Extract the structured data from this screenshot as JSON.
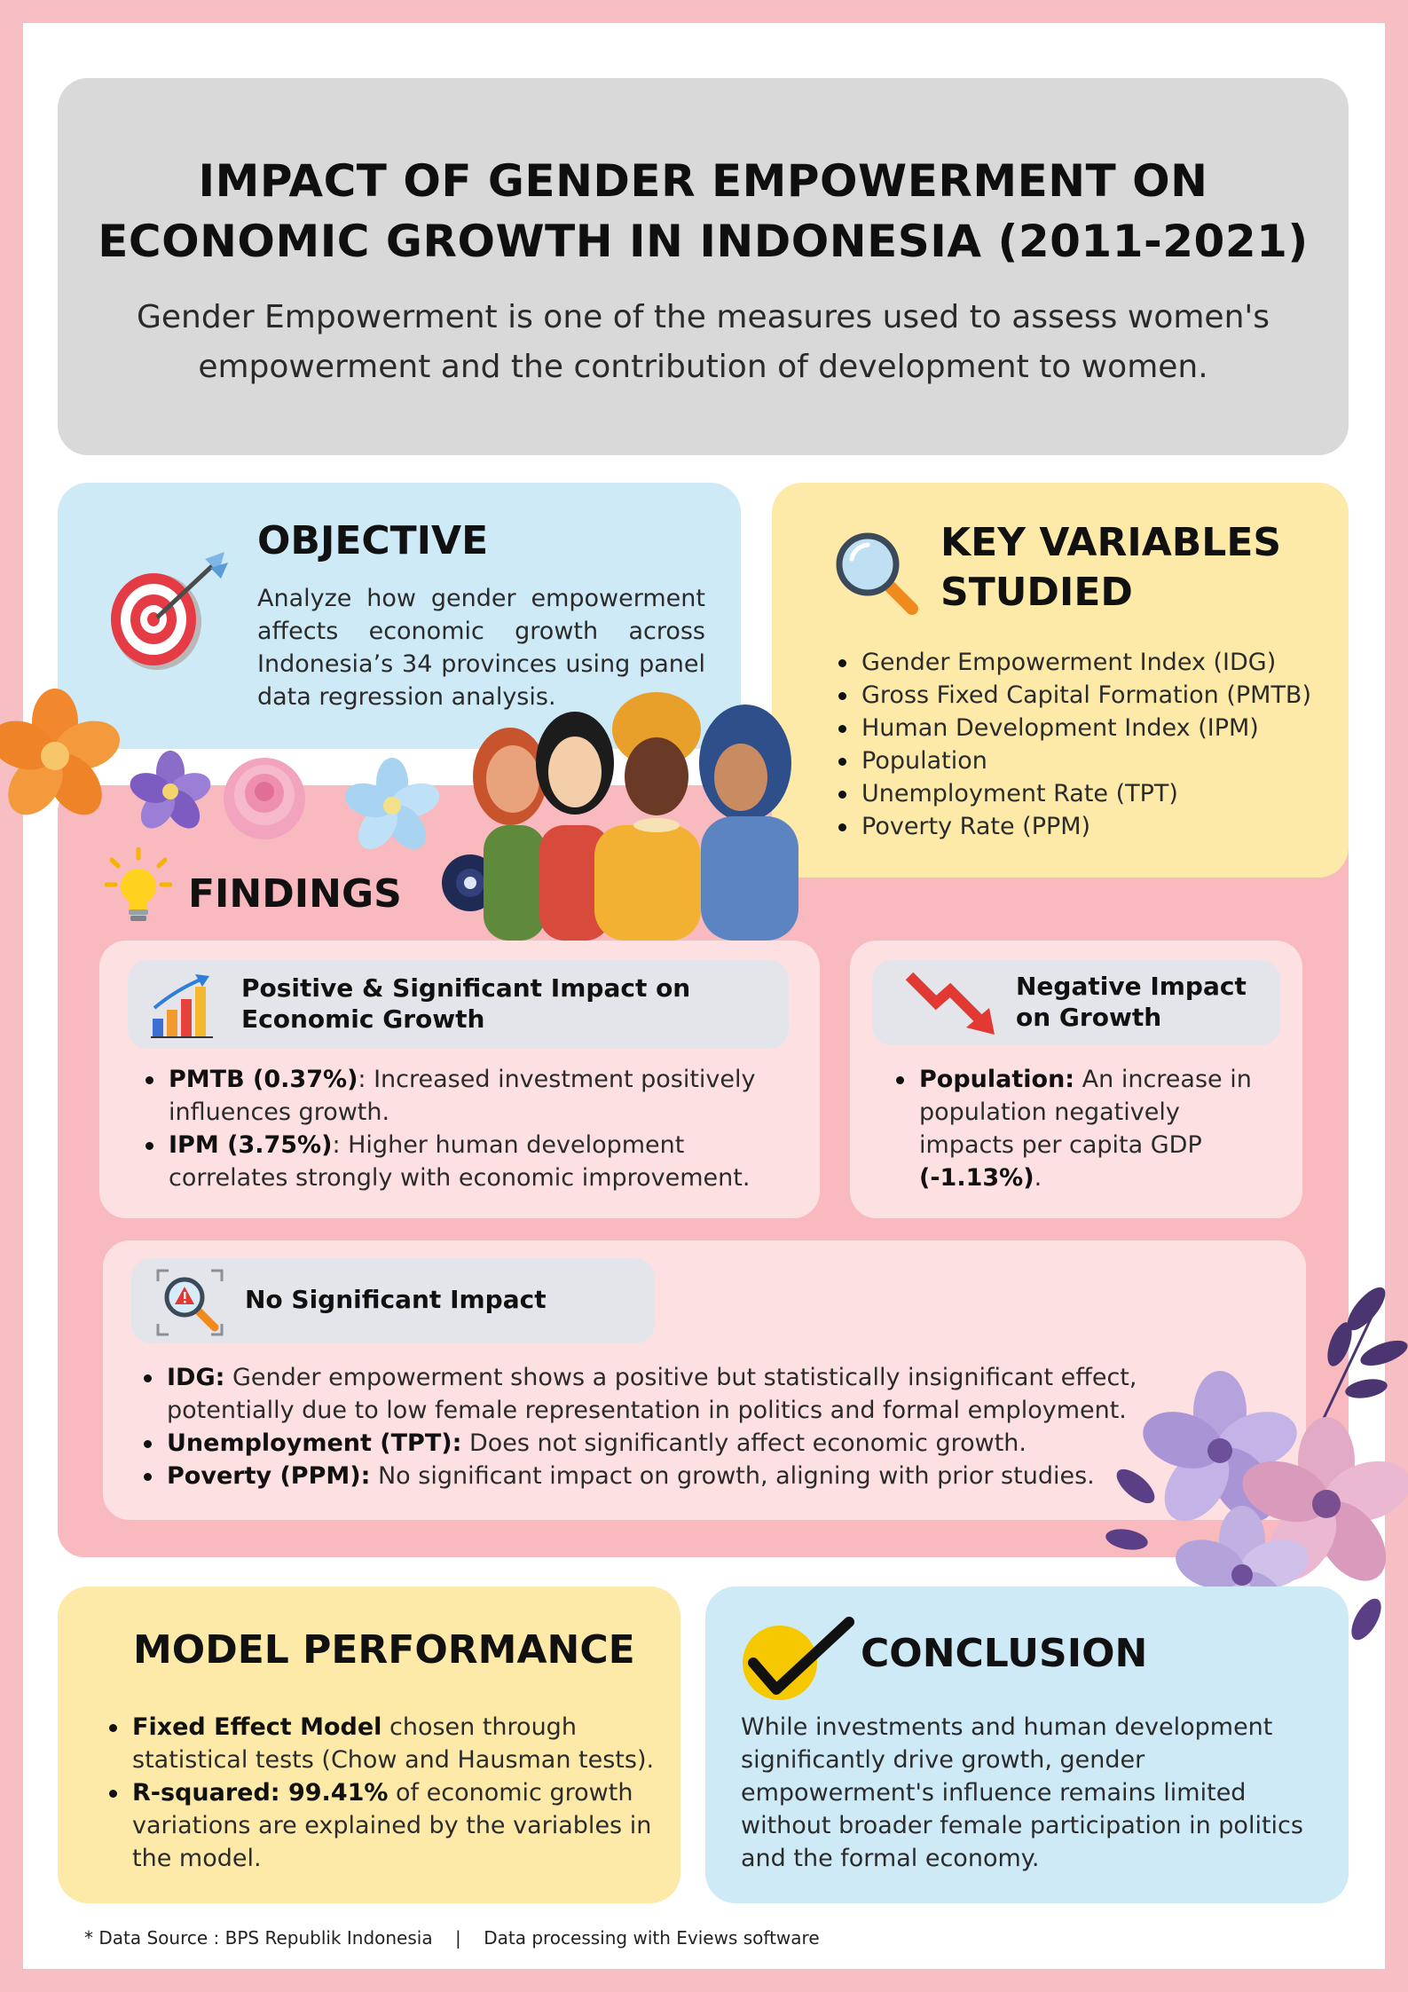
{
  "header": {
    "title_line1": "IMPACT OF GENDER EMPOWERMENT ON",
    "title_line2": "ECONOMIC GROWTH IN INDONESIA (2011-2021)",
    "subtitle_line1": "Gender Empowerment is one of the measures used to assess women's",
    "subtitle_line2": "empowerment and the contribution of development to women."
  },
  "objective": {
    "heading": "OBJECTIVE",
    "icon": "target-icon",
    "text": "Analyze how gender empowerment affects economic growth across Indonesia’s 34 provinces using panel data regression analysis."
  },
  "key_variables": {
    "heading_line1": "KEY VARIABLES",
    "heading_line2": "STUDIED",
    "icon": "magnifier-icon",
    "items": [
      "Gender Empowerment Index (IDG)",
      "Gross Fixed Capital Formation (PMTB)",
      "Human Development Index (IPM)",
      "Population",
      "Unemployment Rate (TPT)",
      "Poverty Rate (PPM)"
    ]
  },
  "findings": {
    "heading": "FINDINGS",
    "icon": "lightbulb-icon",
    "positive": {
      "title_line1": "Positive & Significant Impact on",
      "title_line2": "Economic Growth",
      "items": [
        {
          "bold": "PMTB (0.37%)",
          "line1": ": Increased investment positively",
          "line2": "influences growth."
        },
        {
          "bold": "IPM (3.75%)",
          "line1": ": Higher human development",
          "line2": "correlates strongly with economic improvement."
        }
      ]
    },
    "negative": {
      "title_line1": "Negative Impact",
      "title_line2": "on Growth",
      "bold": "Population:",
      "line1": " An increase in",
      "line2": "population negatively",
      "line3": "impacts per capita GDP",
      "bold2": "(-1.13%)",
      "tail": "."
    },
    "none": {
      "title": "No Significant Impact",
      "items": [
        {
          "bold": "IDG:",
          "line1": " Gender empowerment shows a positive but statistically insignificant effect,",
          "line2": "potentially due to low female representation in politics and formal employment."
        },
        {
          "bold": "Unemployment (TPT):",
          "line1": " Does not significantly affect economic growth.",
          "line2": ""
        },
        {
          "bold": "Poverty (PPM):",
          "line1": " No significant impact on growth, aligning with prior studies.",
          "line2": ""
        }
      ]
    }
  },
  "model": {
    "heading": "MODEL PERFORMANCE",
    "items": [
      {
        "bold": "Fixed Effect Model",
        "line1": " chosen through",
        "line2": "statistical tests (Chow and Hausman tests).",
        "line3": ""
      },
      {
        "bold": "R-squared: 99.41%",
        "line1": " of economic growth",
        "line2": "variations are explained by the variables in",
        "line3": "the model."
      }
    ]
  },
  "conclusion": {
    "heading": "CONCLUSION",
    "icon": "checkmark-icon",
    "lines": [
      "While investments and human development",
      "significantly drive growth, gender",
      "empowerment's influence remains limited",
      "without broader female participation in politics",
      "and the formal economy."
    ]
  },
  "footer": {
    "source": "* Data Source : BPS Republik Indonesia",
    "separator": "|",
    "processing": "Data processing with Eviews software"
  }
}
